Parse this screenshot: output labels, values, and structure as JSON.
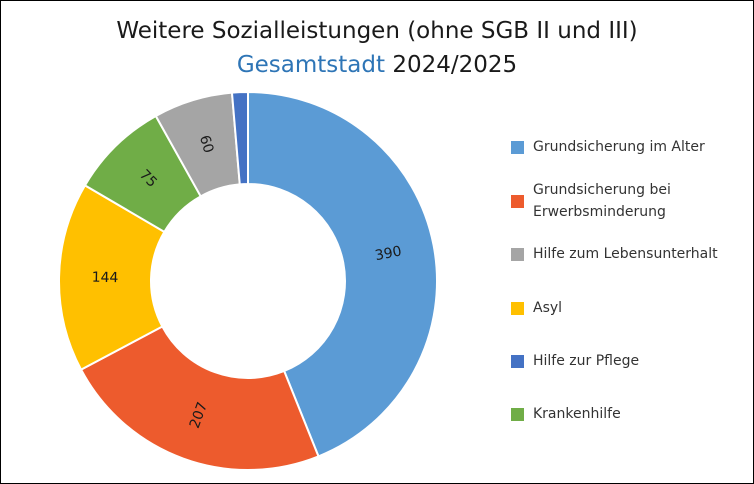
{
  "title": {
    "line1": "Weitere Sozialleistungen (ohne SGB II und III)",
    "line2_accent": "Gesamtstadt",
    "line2_rest": "2024/2025"
  },
  "chart_data": {
    "type": "pie",
    "variant": "doughnut",
    "title": "Weitere Sozialleistungen (ohne SGB II und III) Gesamtstadt 2024/2025",
    "legend_position": "right",
    "start_angle_deg": 0,
    "direction": "clockwise",
    "slices": [
      {
        "name": "Grundsicherung im Alter",
        "value": 390,
        "color": "#5b9bd5",
        "show_label": true
      },
      {
        "name": "Grundsicherung bei Erwerbsminderung",
        "value": 207,
        "color": "#ed5b2d",
        "show_label": true
      },
      {
        "name": "Asyl",
        "value": 144,
        "color": "#ffc000",
        "show_label": true
      },
      {
        "name": "Krankenhilfe",
        "value": 75,
        "color": "#70ad47",
        "show_label": true
      },
      {
        "name": "Hilfe zum Lebensunterhalt",
        "value": 60,
        "color": "#a5a5a5",
        "show_label": true
      },
      {
        "name": "Hilfe zur Pflege",
        "value": 12,
        "color": "#4472c4",
        "show_label": false
      }
    ]
  },
  "legend": {
    "items": [
      {
        "lines": [
          "Grundsicherung im Alter"
        ],
        "color": "#5b9bd5"
      },
      {
        "lines": [
          "Grundsicherung bei",
          "Erwerbsminderung"
        ],
        "color": "#ed5b2d"
      },
      {
        "lines": [
          "Hilfe zum Lebensunterhalt"
        ],
        "color": "#a5a5a5"
      },
      {
        "lines": [
          "Asyl"
        ],
        "color": "#ffc000"
      },
      {
        "lines": [
          "Hilfe zur Pflege"
        ],
        "color": "#4472c4"
      },
      {
        "lines": [
          "Krankenhilfe"
        ],
        "color": "#70ad47"
      }
    ]
  }
}
